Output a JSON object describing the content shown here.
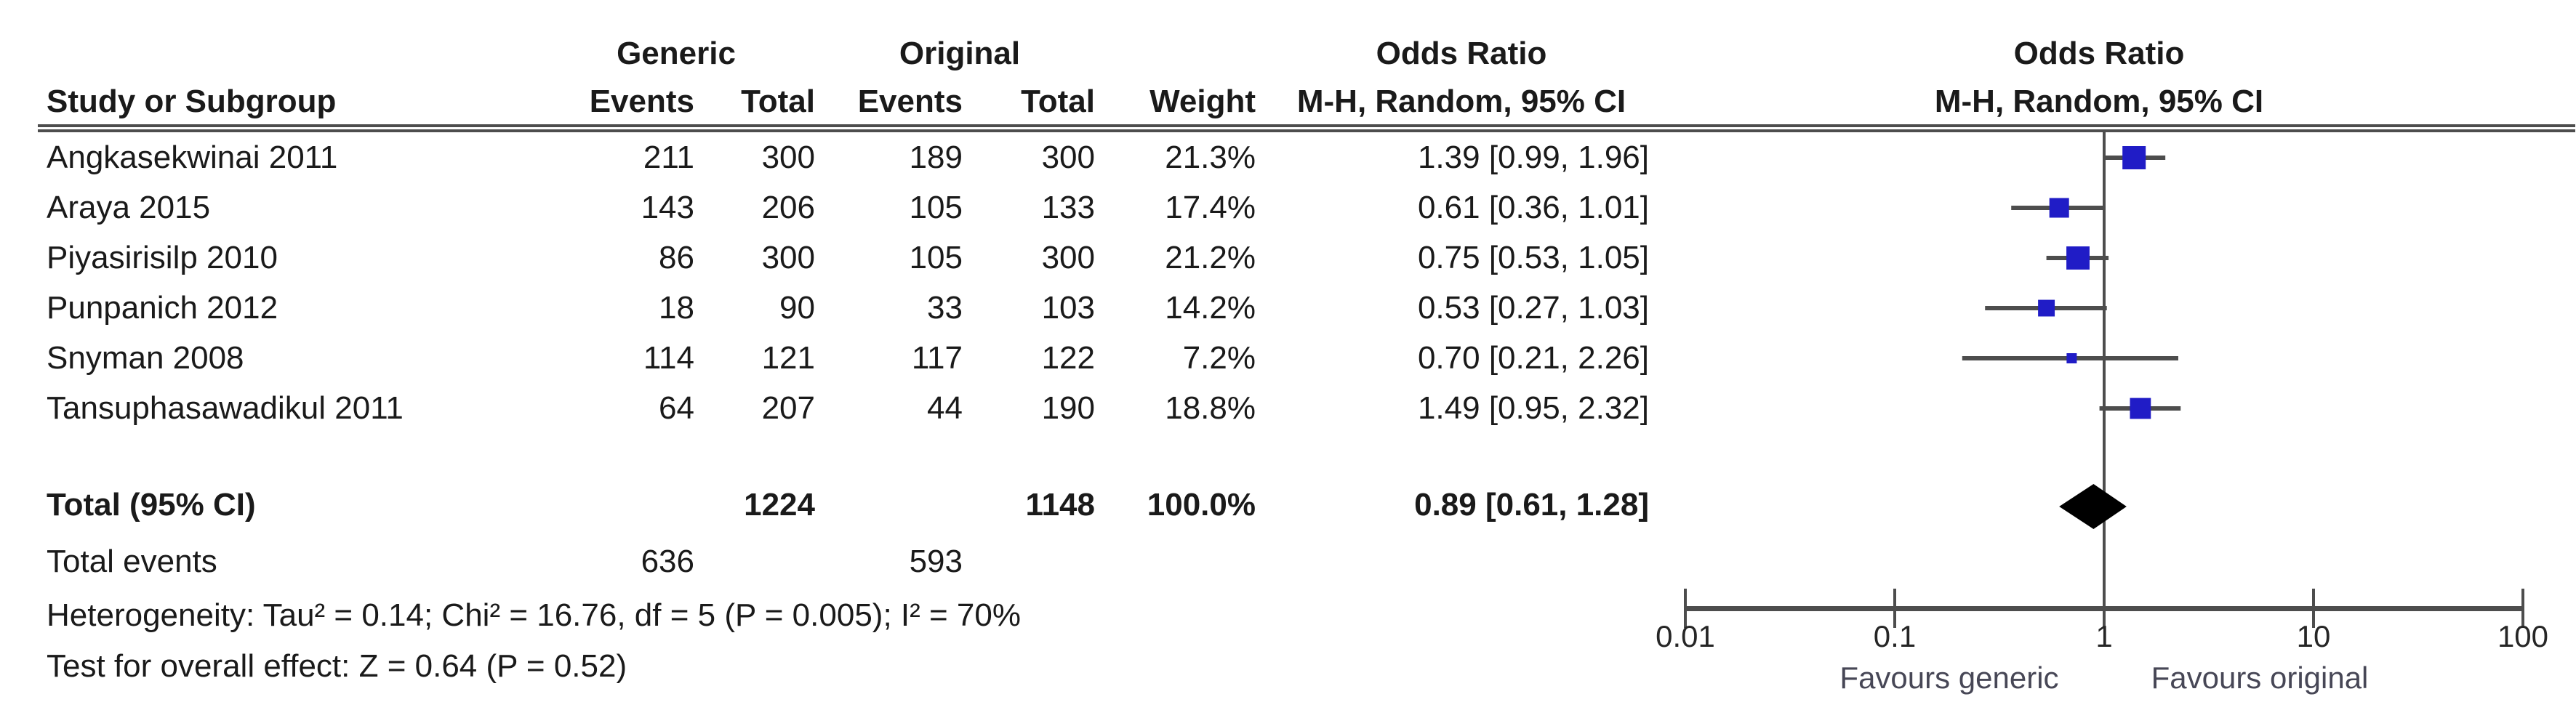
{
  "table": {
    "header": {
      "group_generic": "Generic",
      "group_original": "Original",
      "study": "Study or Subgroup",
      "events": "Events",
      "total": "Total",
      "events2": "Events",
      "total2": "Total",
      "weight": "Weight",
      "or_line1": "Odds Ratio",
      "or_line2": "M-H, Random, 95% CI",
      "plot_line1": "Odds Ratio",
      "plot_line2": "M-H, Random, 95% CI"
    },
    "studies": [
      {
        "study": "Angkasekwinai 2011",
        "g_events": "211",
        "g_total": "300",
        "o_events": "189",
        "o_total": "300",
        "weight": "21.3%",
        "ci": "1.39 [0.99, 1.96]"
      },
      {
        "study": "Araya 2015",
        "g_events": "143",
        "g_total": "206",
        "o_events": "105",
        "o_total": "133",
        "weight": "17.4%",
        "ci": "0.61 [0.36, 1.01]"
      },
      {
        "study": "Piyasirisilp 2010",
        "g_events": "86",
        "g_total": "300",
        "o_events": "105",
        "o_total": "300",
        "weight": "21.2%",
        "ci": "0.75 [0.53, 1.05]"
      },
      {
        "study": "Punpanich 2012",
        "g_events": "18",
        "g_total": "90",
        "o_events": "33",
        "o_total": "103",
        "weight": "14.2%",
        "ci": "0.53 [0.27, 1.03]"
      },
      {
        "study": "Snyman 2008",
        "g_events": "114",
        "g_total": "121",
        "o_events": "117",
        "o_total": "122",
        "weight": "7.2%",
        "ci": "0.70 [0.21, 2.26]"
      },
      {
        "study": "Tansuphasawadikul 2011",
        "g_events": "64",
        "g_total": "207",
        "o_events": "44",
        "o_total": "190",
        "weight": "18.8%",
        "ci": "1.49 [0.95, 2.32]"
      }
    ],
    "total_row": {
      "label": "Total (95% CI)",
      "g_total": "1224",
      "o_total": "1148",
      "weight": "100.0%",
      "ci": "0.89 [0.61, 1.28]"
    },
    "total_events_row": {
      "label": "Total events",
      "g_events": "636",
      "o_events": "593"
    },
    "heterogeneity": "Heterogeneity: Tau² = 0.14; Chi² = 16.76, df = 5 (P = 0.005); I² = 70%",
    "overall_effect": "Test for overall effect: Z = 0.64 (P = 0.52)"
  },
  "chart_data": {
    "type": "forest",
    "title": "Odds Ratio M-H, Random, 95% CI",
    "x_axis": {
      "scale": "log10",
      "min": 0.01,
      "max": 100,
      "ticks": [
        0.01,
        0.1,
        1,
        10,
        100
      ],
      "tick_labels": [
        "0.01",
        "0.1",
        "1",
        "10",
        "100"
      ],
      "reference_line": 1
    },
    "studies": [
      {
        "name": "Angkasekwinai 2011",
        "or": 1.39,
        "ci_low": 0.99,
        "ci_high": 1.96,
        "weight_pct": 21.3
      },
      {
        "name": "Araya 2015",
        "or": 0.61,
        "ci_low": 0.36,
        "ci_high": 1.01,
        "weight_pct": 17.4
      },
      {
        "name": "Piyasirisilp 2010",
        "or": 0.75,
        "ci_low": 0.53,
        "ci_high": 1.05,
        "weight_pct": 21.2
      },
      {
        "name": "Punpanich 2012",
        "or": 0.53,
        "ci_low": 0.27,
        "ci_high": 1.03,
        "weight_pct": 14.2
      },
      {
        "name": "Snyman 2008",
        "or": 0.7,
        "ci_low": 0.21,
        "ci_high": 2.26,
        "weight_pct": 7.2
      },
      {
        "name": "Tansuphasawadikul 2011",
        "or": 1.49,
        "ci_low": 0.95,
        "ci_high": 2.32,
        "weight_pct": 18.8
      }
    ],
    "total": {
      "or": 0.89,
      "ci_low": 0.61,
      "ci_high": 1.28,
      "weight_pct": 100.0
    },
    "favours_left": "Favours generic",
    "favours_right": "Favours original",
    "legend_position": "bottom",
    "grid": false,
    "colors": {
      "marker": "#201cc6",
      "ci_line": "#4d4d4d",
      "axis": "#4d4d4d",
      "diamond": "#000000"
    }
  }
}
